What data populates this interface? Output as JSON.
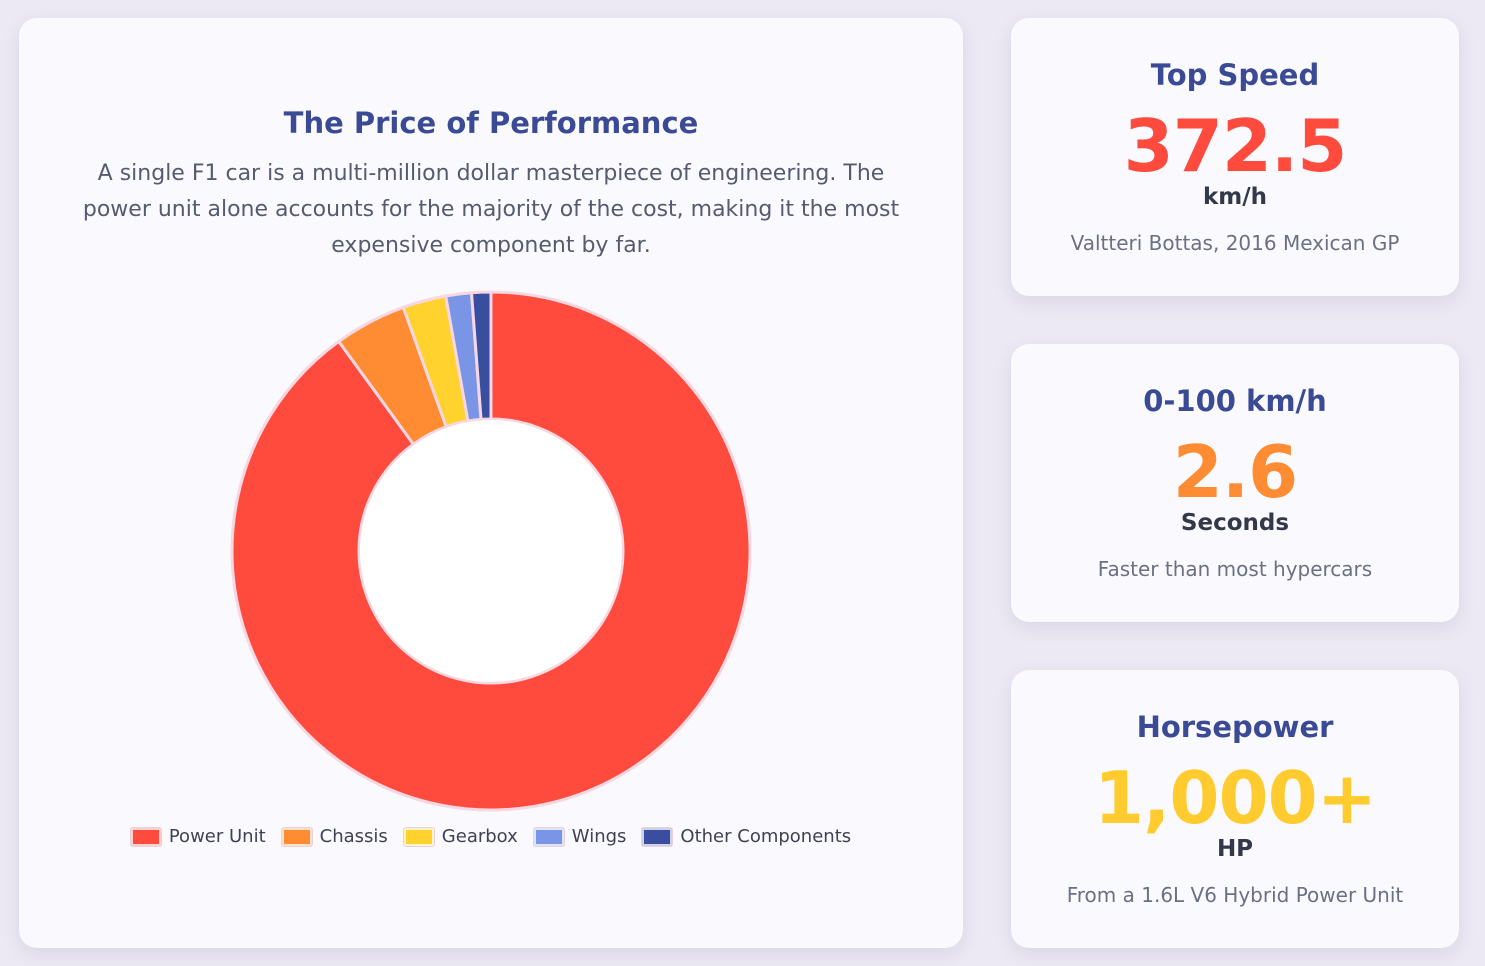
{
  "colors": {
    "power_unit": "#ff4b3e",
    "chassis": "#ff8c32",
    "gearbox": "#ffd22e",
    "wings": "#7b95e6",
    "other": "#3a4ea0",
    "title": "#3b4a94"
  },
  "chart_data": {
    "type": "pie",
    "title": "The Price of Performance",
    "subtitle": "A single F1 car is a multi-million dollar masterpiece of engineering. The power unit alone accounts for the majority of the cost, making it the most expensive component by far.",
    "categories": [
      "Power Unit",
      "Chassis",
      "Gearbox",
      "Wings",
      "Other Components"
    ],
    "values": [
      90,
      4.5,
      2.7,
      1.6,
      1.2
    ],
    "donut": true,
    "legend_position": "bottom"
  },
  "stats": [
    {
      "title": "Top Speed",
      "value": "372.5",
      "unit": "km/h",
      "note": "Valtteri Bottas, 2016 Mexican GP",
      "color": "#ff4b3e"
    },
    {
      "title": "0-100 km/h",
      "value": "2.6",
      "unit": "Seconds",
      "note": "Faster than most hypercars",
      "color": "#ff8c32"
    },
    {
      "title": "Horsepower",
      "value": "1,000+",
      "unit": "HP",
      "note": "From a 1.6L V6 Hybrid Power Unit",
      "color": "#ffcb2e"
    }
  ]
}
